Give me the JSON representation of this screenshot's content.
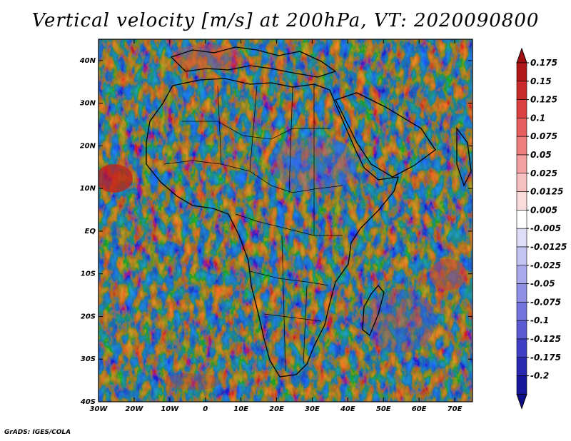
{
  "title": "Vertical velocity [m/s] at 200hPa, VT: 2020090800",
  "credit": "GrADS: IGES/COLA",
  "map": {
    "lon_ticks": [
      "30W",
      "20W",
      "10W",
      "0",
      "10E",
      "20E",
      "30E",
      "40E",
      "50E",
      "60E",
      "70E"
    ],
    "lat_ticks": [
      "40N",
      "30N",
      "20N",
      "10N",
      "EQ",
      "10S",
      "20S",
      "30S",
      "40S"
    ],
    "lon_range": [
      -30,
      75
    ],
    "lat_range": [
      -40,
      45
    ]
  },
  "colorbar": {
    "labels": [
      "0.175",
      "0.15",
      "0.125",
      "0.1",
      "0.075",
      "0.05",
      "0.025",
      "0.0125",
      "0.005",
      "-0.005",
      "-0.0125",
      "-0.025",
      "-0.05",
      "-0.075",
      "-0.1",
      "-0.125",
      "-0.175",
      "-0.2"
    ],
    "colors": [
      "#b01818",
      "#c92a2a",
      "#db4040",
      "#e65e5e",
      "#ee7e7e",
      "#f3a0a0",
      "#f7c0c0",
      "#fadcdc",
      "#ffffff",
      "#dedef8",
      "#c4c4f2",
      "#a9a9ec",
      "#8f8fe5",
      "#7474dd",
      "#5a5ad3",
      "#3f3fc6",
      "#2828b0",
      "#16169a"
    ],
    "top_arrow_color": "#a01010",
    "bottom_arrow_color": "#0e0e88"
  }
}
